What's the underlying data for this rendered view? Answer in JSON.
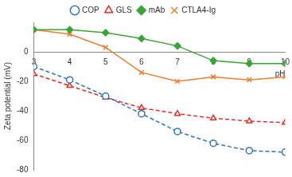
{
  "chart_data": {
    "type": "line",
    "x_label": "pH",
    "y_label": "Zeta potential (mV)",
    "x": [
      3,
      4,
      5,
      6,
      7,
      8,
      9,
      10
    ],
    "xlim": [
      3,
      10
    ],
    "xticks": [
      3,
      4,
      5,
      6,
      7,
      8,
      9,
      10
    ],
    "ylim": [
      -80,
      20
    ],
    "yticks": [
      -80,
      -60,
      -40,
      -20,
      0
    ],
    "grid": false,
    "legend": "top",
    "series": [
      {
        "name": "COP",
        "color": "#2e75b6",
        "marker": "circle",
        "line_style": "dashed",
        "values": [
          -10,
          -19,
          -30,
          -42,
          -54,
          -62,
          -67,
          -68
        ]
      },
      {
        "name": "GLS",
        "color": "#e0302c",
        "marker": "triangle",
        "line_style": "dashed",
        "values": [
          -15,
          -23,
          -31,
          -38,
          -42,
          -45,
          -47,
          -48
        ]
      },
      {
        "name": "mAb",
        "color": "#3da33a",
        "marker": "diamond",
        "line_style": "solid",
        "values": [
          15,
          15,
          13,
          9,
          4,
          -6,
          -8,
          -8
        ]
      },
      {
        "name": "CTLA4-Ig",
        "color": "#ed7d31",
        "marker": "x",
        "line_style": "solid",
        "values": [
          15,
          12,
          3,
          -14,
          -20,
          -17,
          -19,
          -17
        ]
      }
    ]
  }
}
